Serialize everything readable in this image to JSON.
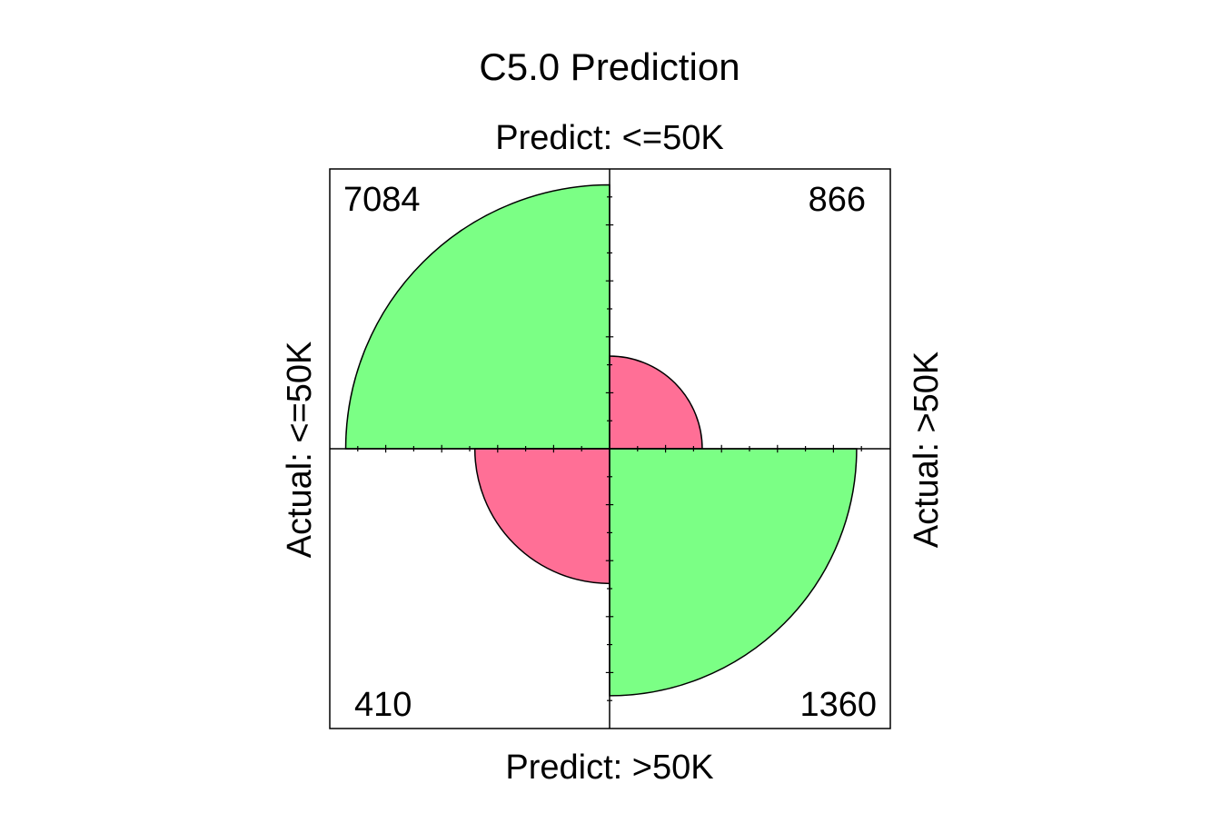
{
  "chart_data": {
    "type": "fourfold",
    "title": "C5.0 Prediction",
    "top_label": "Predict: <=50K",
    "bottom_label": "Predict: >50K",
    "left_label": "Actual: <=50K",
    "right_label": "Actual: >50K",
    "cells": [
      {
        "actual": "<=50K",
        "predict": "<=50K",
        "count": 7084,
        "label": "7084",
        "position": "top-left",
        "correct": true
      },
      {
        "actual": ">50K",
        "predict": "<=50K",
        "count": 866,
        "label": "866",
        "position": "top-right",
        "correct": false
      },
      {
        "actual": "<=50K",
        "predict": ">50K",
        "count": 410,
        "label": "410",
        "position": "bottom-left",
        "correct": false
      },
      {
        "actual": ">50K",
        "predict": ">50K",
        "count": 1360,
        "label": "1360",
        "position": "bottom-right",
        "correct": true
      }
    ],
    "relative_radius": {
      "top-left": 0.94,
      "top-right": 0.33,
      "bottom-left": 0.48,
      "bottom-right": 0.88
    },
    "colors": {
      "correct": "#7bff85",
      "incorrect": "#ff6f96",
      "border": "#000000"
    }
  }
}
